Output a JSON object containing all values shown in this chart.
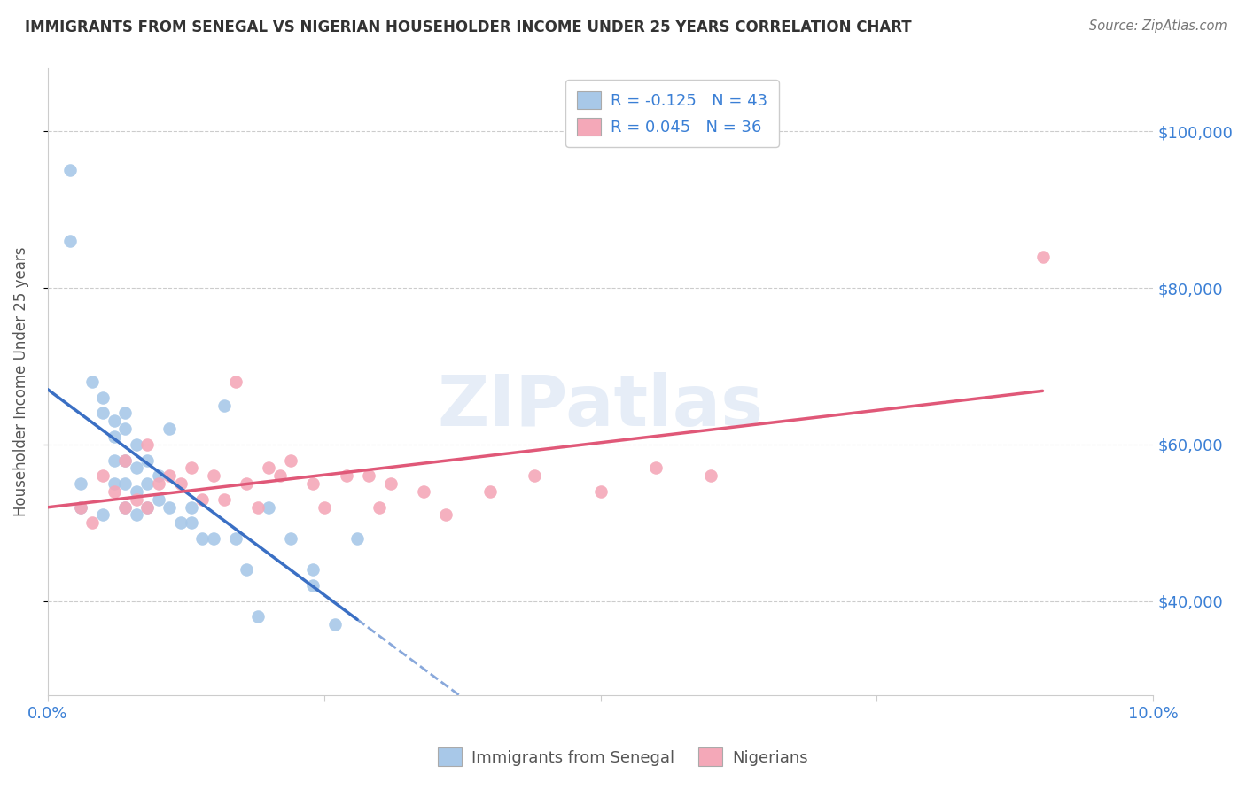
{
  "title": "IMMIGRANTS FROM SENEGAL VS NIGERIAN HOUSEHOLDER INCOME UNDER 25 YEARS CORRELATION CHART",
  "source": "Source: ZipAtlas.com",
  "ylabel": "Householder Income Under 25 years",
  "xlim": [
    0.0,
    0.1
  ],
  "ylim": [
    28000,
    108000
  ],
  "ytick_labels": [
    "$40,000",
    "$60,000",
    "$80,000",
    "$100,000"
  ],
  "ytick_values": [
    40000,
    60000,
    80000,
    100000
  ],
  "xtick_labels": [
    "0.0%",
    "",
    "",
    "",
    "10.0%"
  ],
  "xtick_values": [
    0.0,
    0.025,
    0.05,
    0.075,
    0.1
  ],
  "legend_entries": [
    {
      "label": "R = -0.125   N = 43",
      "color": "#a8c8e8"
    },
    {
      "label": "R = 0.045   N = 36",
      "color": "#f4a8b8"
    }
  ],
  "legend_bottom": [
    {
      "label": "Immigrants from Senegal",
      "color": "#a8c8e8"
    },
    {
      "label": "Nigerians",
      "color": "#f4a8b8"
    }
  ],
  "senegal_x": [
    0.002,
    0.002,
    0.003,
    0.003,
    0.004,
    0.005,
    0.005,
    0.005,
    0.006,
    0.006,
    0.006,
    0.006,
    0.007,
    0.007,
    0.007,
    0.007,
    0.007,
    0.008,
    0.008,
    0.008,
    0.008,
    0.009,
    0.009,
    0.009,
    0.01,
    0.01,
    0.011,
    0.011,
    0.012,
    0.013,
    0.013,
    0.014,
    0.015,
    0.016,
    0.017,
    0.018,
    0.019,
    0.02,
    0.022,
    0.024,
    0.024,
    0.026,
    0.028
  ],
  "senegal_y": [
    95000,
    86000,
    55000,
    52000,
    68000,
    66000,
    64000,
    51000,
    63000,
    61000,
    58000,
    55000,
    64000,
    62000,
    58000,
    55000,
    52000,
    60000,
    57000,
    54000,
    51000,
    58000,
    55000,
    52000,
    56000,
    53000,
    62000,
    52000,
    50000,
    52000,
    50000,
    48000,
    48000,
    65000,
    48000,
    44000,
    38000,
    52000,
    48000,
    44000,
    42000,
    37000,
    48000
  ],
  "nigerian_x": [
    0.003,
    0.004,
    0.005,
    0.006,
    0.007,
    0.007,
    0.008,
    0.009,
    0.009,
    0.01,
    0.011,
    0.012,
    0.013,
    0.014,
    0.015,
    0.016,
    0.017,
    0.018,
    0.019,
    0.02,
    0.021,
    0.022,
    0.024,
    0.025,
    0.027,
    0.029,
    0.03,
    0.031,
    0.034,
    0.036,
    0.04,
    0.044,
    0.05,
    0.055,
    0.06,
    0.09
  ],
  "nigerian_y": [
    52000,
    50000,
    56000,
    54000,
    58000,
    52000,
    53000,
    60000,
    52000,
    55000,
    56000,
    55000,
    57000,
    53000,
    56000,
    53000,
    68000,
    55000,
    52000,
    57000,
    56000,
    58000,
    55000,
    52000,
    56000,
    56000,
    52000,
    55000,
    54000,
    51000,
    54000,
    56000,
    54000,
    57000,
    56000,
    84000
  ],
  "senegal_line_color": "#3a6fc4",
  "nigerian_line_color": "#e05878",
  "senegal_dot_color": "#a8c8e8",
  "nigerian_dot_color": "#f4a8b8",
  "watermark": "ZIPatlas",
  "background_color": "#ffffff",
  "grid_color": "#cccccc",
  "title_color": "#333333",
  "axis_label_color": "#555555",
  "ytick_color": "#3a7fd5",
  "xtick_color": "#3a7fd5"
}
